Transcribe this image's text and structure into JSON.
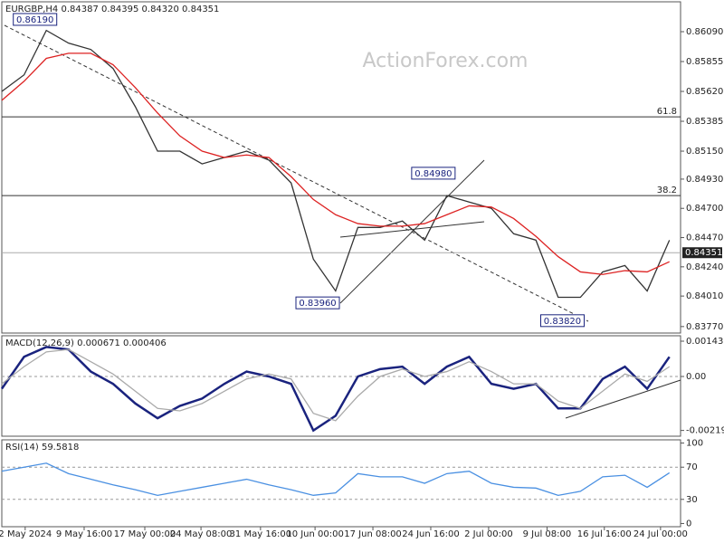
{
  "chart_data": [
    {
      "type": "line",
      "title": "EURGBP,H4  0.84387 0.84395 0.84320 0.84351",
      "watermark": "ActionForex.com",
      "xlim": [
        0,
        122
      ],
      "ylim": [
        0.83719,
        0.86325
      ],
      "yticks": [
        {
          "value": 0.8609,
          "label": "0.86090"
        },
        0.85855,
        {
          "value": 0.8562,
          "label": "0.85620"
        },
        0.85385,
        {
          "value": 0.8515,
          "label": "0.85150"
        },
        {
          "value": 0.8493,
          "label": "0.84930"
        },
        {
          "value": 0.847,
          "label": "0.84700"
        },
        {
          "value": 0.8447,
          "label": "0.84470"
        },
        {
          "value": 0.8424,
          "label": "0.84240"
        },
        {
          "value": 0.8401,
          "label": "0.84010"
        },
        {
          "value": 0.8377,
          "label": "0.83770"
        }
      ],
      "x": [
        0,
        4,
        8,
        12,
        16,
        20,
        24,
        28,
        32,
        36,
        40,
        44,
        48,
        52,
        56,
        60,
        64,
        68,
        72,
        76,
        80,
        84,
        88,
        92,
        96,
        100,
        104,
        108,
        112,
        116,
        120
      ],
      "series": [
        {
          "name": "EURGBP",
          "color": "#333333",
          "values": [
            0.8562,
            0.8575,
            0.861,
            0.86,
            0.8595,
            0.858,
            0.855,
            0.8515,
            0.8515,
            0.8505,
            0.851,
            0.8515,
            0.8508,
            0.849,
            0.843,
            0.8405,
            0.8455,
            0.8455,
            0.846,
            0.8445,
            0.848,
            0.8475,
            0.847,
            0.845,
            0.8445,
            0.84,
            0.84,
            0.842,
            0.8425,
            0.8405,
            0.8445
          ]
        },
        {
          "name": "MA",
          "color": "#dd2222",
          "values": [
            0.8555,
            0.857,
            0.8588,
            0.8592,
            0.8592,
            0.8583,
            0.8565,
            0.8545,
            0.8527,
            0.8515,
            0.851,
            0.8512,
            0.851,
            0.8495,
            0.8477,
            0.8465,
            0.8458,
            0.8456,
            0.8456,
            0.8458,
            0.8465,
            0.8472,
            0.8471,
            0.8462,
            0.8448,
            0.8432,
            0.842,
            0.8418,
            0.8421,
            0.842,
            0.8428
          ]
        }
      ],
      "hlines": [
        {
          "value": 0.8542,
          "label": "61.8"
        },
        {
          "value": 0.848,
          "label": "38.2"
        },
        {
          "value": 0.84351,
          "label": "0.84351"
        }
      ],
      "annotations": [
        {
          "x": 10.2,
          "y": 0.8619,
          "label": "0.86190"
        },
        {
          "x": 81.8,
          "y": 0.8498,
          "label": "0.84980"
        },
        {
          "x": 61,
          "y": 0.8396,
          "label": "0.83960"
        },
        {
          "x": 105,
          "y": 0.8382,
          "label": "0.83820"
        }
      ]
    },
    {
      "type": "line",
      "title": "MACD(12,26,9) 0.000671 0.000406",
      "xlim": [
        0,
        122
      ],
      "ylim": [
        -0.002432,
        0.001658
      ],
      "yticks": [
        0.001437,
        {
          "value": 0,
          "label": "0.00"
        },
        -0.002197
      ],
      "x": [
        0,
        4,
        8,
        12,
        16,
        20,
        24,
        28,
        32,
        36,
        40,
        44,
        48,
        52,
        56,
        60,
        64,
        68,
        72,
        76,
        80,
        84,
        88,
        92,
        96,
        100,
        104,
        108,
        112,
        116,
        120
      ],
      "series": [
        {
          "name": "MACD",
          "color": "#1a237e",
          "values": [
            -0.0005,
            0.0008,
            0.0012,
            0.0011,
            0.0002,
            -0.0003,
            -0.0011,
            -0.0017,
            -0.0012,
            -0.0009,
            -0.0003,
            0.0002,
            0,
            -0.0003,
            -0.0022,
            -0.0016,
            0,
            0.0003,
            0.0004,
            -0.0003,
            0.0004,
            0.0008,
            -0.0003,
            -0.0005,
            -0.0003,
            -0.0013,
            -0.0013,
            -0.0001,
            0.0004,
            -0.0005,
            0.0008
          ]
        },
        {
          "name": "Signal",
          "color": "#aaaaaa",
          "values": [
            -0.0003,
            0.0004,
            0.001,
            0.0011,
            0.0006,
            0.0001,
            -0.0006,
            -0.0013,
            -0.0014,
            -0.0011,
            -0.0006,
            -0.0001,
            0.0001,
            -0.0001,
            -0.0015,
            -0.0018,
            -0.0008,
            0,
            0.0003,
            0,
            0.0002,
            0.0006,
            0.0002,
            -0.0003,
            -0.0003,
            -0.001,
            -0.0013,
            -0.0006,
            0.0001,
            -0.0002,
            0.0004
          ]
        }
      ]
    },
    {
      "type": "line",
      "title": "RSI(14) 59.5818",
      "xlim": [
        0,
        122
      ],
      "ylim": [
        -4,
        104
      ],
      "yticks": [
        0,
        30,
        70,
        100
      ],
      "xticks": [
        {
          "value": 4.2,
          "label": "2 May 2024"
        },
        {
          "value": 14.8,
          "label": "9 May 16:00"
        },
        {
          "value": 25.7,
          "label": "17 May 00:00"
        },
        {
          "value": 35.8,
          "label": "24 May 08:00"
        },
        {
          "value": 46.5,
          "label": "31 May 16:00"
        },
        {
          "value": 56.3,
          "label": "10 Jun 00:00"
        },
        {
          "value": 66.7,
          "label": "17 Jun 08:00"
        },
        {
          "value": 77.1,
          "label": "24 Jun 16:00"
        },
        {
          "value": 87.5,
          "label": "2 Jul 00:00"
        },
        {
          "value": 98,
          "label": "9 Jul 08:00"
        },
        {
          "value": 108.3,
          "label": "16 Jul 16:00"
        },
        {
          "value": 118.4,
          "label": "24 Jul 00:00"
        }
      ],
      "x": [
        0,
        4,
        8,
        12,
        16,
        20,
        24,
        28,
        32,
        36,
        40,
        44,
        48,
        52,
        56,
        60,
        64,
        68,
        72,
        76,
        80,
        84,
        88,
        92,
        96,
        100,
        104,
        108,
        112,
        116,
        120
      ],
      "series": [
        {
          "name": "RSI",
          "color": "#4a90e2",
          "values": [
            65,
            70,
            75,
            62,
            55,
            48,
            42,
            35,
            40,
            45,
            50,
            55,
            48,
            42,
            35,
            38,
            62,
            58,
            58,
            50,
            62,
            65,
            50,
            45,
            44,
            35,
            40,
            58,
            60,
            45,
            63
          ]
        }
      ]
    }
  ]
}
